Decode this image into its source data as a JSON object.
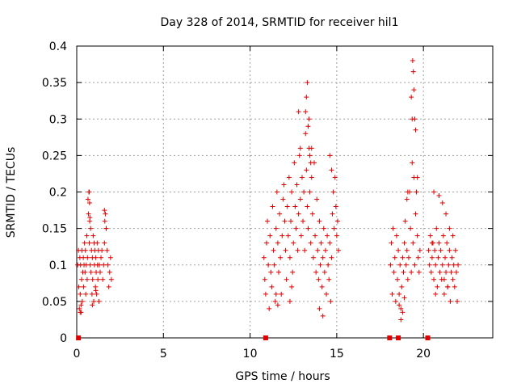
{
  "chart_data": {
    "type": "scatter",
    "title": "Day 328 of 2014, SRMTID for receiver hil1",
    "xlabel": "GPS time / hours",
    "ylabel": "SRMTID / TECUs",
    "xlim": [
      0,
      24
    ],
    "ylim": [
      0,
      0.4
    ],
    "xticks": [
      0,
      5,
      10,
      15,
      20
    ],
    "xtick_labels": [
      "0",
      "5",
      "10",
      "15",
      "20"
    ],
    "yticks": [
      0,
      0.05,
      0.1,
      0.15,
      0.2,
      0.25,
      0.3,
      0.35,
      0.4
    ],
    "ytick_labels": [
      "0",
      "0.05",
      "0.1",
      "0.15",
      "0.2",
      "0.25",
      "0.3",
      "0.35",
      "0.4"
    ],
    "grid": true,
    "marker": "+",
    "series_color": "#e00000",
    "series": [
      {
        "name": "SRMTID",
        "x": [
          0.05,
          0.1,
          0.12,
          0.15,
          0.18,
          0.2,
          0.22,
          0.25,
          0.28,
          0.3,
          0.32,
          0.35,
          0.38,
          0.4,
          0.42,
          0.45,
          0.48,
          0.5,
          0.52,
          0.55,
          0.58,
          0.6,
          0.62,
          0.65,
          0.68,
          0.7,
          0.72,
          0.75,
          0.78,
          0.8,
          0.82,
          0.85,
          0.88,
          0.9,
          0.92,
          0.95,
          0.98,
          1.0,
          1.02,
          1.05,
          1.08,
          1.1,
          1.12,
          1.15,
          1.18,
          1.2,
          1.22,
          1.25,
          1.28,
          1.3,
          1.35,
          1.4,
          1.45,
          1.5,
          1.55,
          1.6,
          1.65,
          1.7,
          1.75,
          1.8,
          1.85,
          1.9,
          1.95,
          2.0,
          0.72,
          0.74,
          0.76,
          1.6,
          1.62,
          1.7,
          0.2,
          0.25,
          0.9,
          1.1,
          10.8,
          10.85,
          10.9,
          10.95,
          11.0,
          11.05,
          11.1,
          11.15,
          11.2,
          11.25,
          11.3,
          11.35,
          11.4,
          11.45,
          11.5,
          11.55,
          11.6,
          11.65,
          11.7,
          11.75,
          11.8,
          11.85,
          11.9,
          11.95,
          12.0,
          12.05,
          12.1,
          12.15,
          12.2,
          12.25,
          12.3,
          12.35,
          12.4,
          12.45,
          12.5,
          12.55,
          12.6,
          12.65,
          12.7,
          12.75,
          12.8,
          12.85,
          12.9,
          12.95,
          13.0,
          13.05,
          13.1,
          13.15,
          13.2,
          13.25,
          13.3,
          13.35,
          13.4,
          13.45,
          13.5,
          13.55,
          13.6,
          13.65,
          13.7,
          13.75,
          13.8,
          13.85,
          13.9,
          13.95,
          14.0,
          14.05,
          14.1,
          14.15,
          14.2,
          14.25,
          14.3,
          14.35,
          14.4,
          14.45,
          14.5,
          14.55,
          14.6,
          14.65,
          14.7,
          14.75,
          14.8,
          14.85,
          14.9,
          14.95,
          15.0,
          15.05,
          15.1,
          13.2,
          13.25,
          13.3,
          13.35,
          13.4,
          13.45,
          13.5,
          13.55,
          12.8,
          12.9,
          14.6,
          14.7,
          11.5,
          11.6,
          12.3,
          12.4,
          14.0,
          14.2,
          18.1,
          18.15,
          18.2,
          18.25,
          18.3,
          18.35,
          18.4,
          18.45,
          18.5,
          18.55,
          18.6,
          18.65,
          18.7,
          18.75,
          18.8,
          18.85,
          18.9,
          18.95,
          19.0,
          19.05,
          19.1,
          19.15,
          19.2,
          19.25,
          19.3,
          19.35,
          19.4,
          19.45,
          19.5,
          19.55,
          19.6,
          19.65,
          19.7,
          19.75,
          19.8,
          19.38,
          19.42,
          19.45,
          19.5,
          19.55,
          19.3,
          19.35,
          19.6,
          19.65,
          18.6,
          18.7,
          18.8,
          18.9,
          19.05,
          19.1,
          20.3,
          20.35,
          20.4,
          20.45,
          20.5,
          20.55,
          20.6,
          20.65,
          20.7,
          20.75,
          20.8,
          20.85,
          20.9,
          20.95,
          21.0,
          21.05,
          21.1,
          21.15,
          21.2,
          21.25,
          21.3,
          21.35,
          21.4,
          21.45,
          21.5,
          21.55,
          21.6,
          21.65,
          21.7,
          21.75,
          21.8,
          21.85,
          21.9,
          21.95,
          22.0,
          20.5,
          20.6,
          20.9,
          21.1,
          21.3,
          21.5,
          21.7,
          20.7,
          21.2,
          21.4
        ],
        "y": [
          0.1,
          0.12,
          0.07,
          0.04,
          0.11,
          0.06,
          0.1,
          0.035,
          0.08,
          0.12,
          0.05,
          0.09,
          0.11,
          0.07,
          0.1,
          0.13,
          0.09,
          0.12,
          0.06,
          0.1,
          0.14,
          0.08,
          0.11,
          0.19,
          0.17,
          0.2,
          0.13,
          0.16,
          0.1,
          0.15,
          0.09,
          0.12,
          0.06,
          0.11,
          0.08,
          0.14,
          0.05,
          0.13,
          0.1,
          0.12,
          0.07,
          0.11,
          0.09,
          0.06,
          0.13,
          0.1,
          0.08,
          0.12,
          0.05,
          0.1,
          0.09,
          0.11,
          0.12,
          0.08,
          0.1,
          0.13,
          0.17,
          0.15,
          0.12,
          0.1,
          0.07,
          0.09,
          0.11,
          0.08,
          0.2,
          0.185,
          0.165,
          0.175,
          0.16,
          0.15,
          0.035,
          0.045,
          0.045,
          0.065,
          0.11,
          0.08,
          0.06,
          0.13,
          0.16,
          0.1,
          0.04,
          0.14,
          0.09,
          0.07,
          0.18,
          0.12,
          0.1,
          0.05,
          0.15,
          0.2,
          0.13,
          0.09,
          0.17,
          0.11,
          0.06,
          0.14,
          0.19,
          0.21,
          0.16,
          0.12,
          0.08,
          0.18,
          0.14,
          0.22,
          0.11,
          0.16,
          0.2,
          0.09,
          0.13,
          0.24,
          0.18,
          0.15,
          0.21,
          0.12,
          0.17,
          0.25,
          0.19,
          0.14,
          0.22,
          0.16,
          0.2,
          0.12,
          0.28,
          0.23,
          0.18,
          0.15,
          0.26,
          0.2,
          0.13,
          0.22,
          0.17,
          0.11,
          0.24,
          0.14,
          0.09,
          0.19,
          0.12,
          0.08,
          0.16,
          0.1,
          0.13,
          0.07,
          0.11,
          0.15,
          0.09,
          0.12,
          0.06,
          0.14,
          0.1,
          0.08,
          0.13,
          0.05,
          0.11,
          0.17,
          0.2,
          0.15,
          0.22,
          0.18,
          0.14,
          0.16,
          0.12,
          0.31,
          0.33,
          0.35,
          0.29,
          0.3,
          0.25,
          0.24,
          0.26,
          0.31,
          0.26,
          0.25,
          0.23,
          0.06,
          0.045,
          0.05,
          0.07,
          0.04,
          0.03,
          0.1,
          0.13,
          0.06,
          0.15,
          0.09,
          0.11,
          0.05,
          0.14,
          0.08,
          0.12,
          0.045,
          0.1,
          0.025,
          0.07,
          0.11,
          0.09,
          0.13,
          0.16,
          0.1,
          0.12,
          0.08,
          0.11,
          0.2,
          0.15,
          0.09,
          0.3,
          0.13,
          0.22,
          0.1,
          0.17,
          0.2,
          0.14,
          0.11,
          0.09,
          0.12,
          0.38,
          0.365,
          0.34,
          0.3,
          0.285,
          0.33,
          0.24,
          0.2,
          0.22,
          0.06,
          0.04,
          0.035,
          0.055,
          0.19,
          0.2,
          0.12,
          0.1,
          0.14,
          0.09,
          0.11,
          0.13,
          0.08,
          0.12,
          0.1,
          0.15,
          0.07,
          0.11,
          0.13,
          0.09,
          0.12,
          0.08,
          0.1,
          0.14,
          0.06,
          0.11,
          0.09,
          0.13,
          0.07,
          0.1,
          0.12,
          0.05,
          0.09,
          0.11,
          0.08,
          0.1,
          0.07,
          0.12,
          0.09,
          0.05,
          0.1,
          0.13,
          0.2,
          0.195,
          0.185,
          0.17,
          0.15,
          0.14,
          0.06,
          0.08,
          0.07
        ],
        "zero_markers_x": [
          0.1,
          10.9,
          18.05,
          18.55,
          20.25
        ]
      }
    ]
  }
}
